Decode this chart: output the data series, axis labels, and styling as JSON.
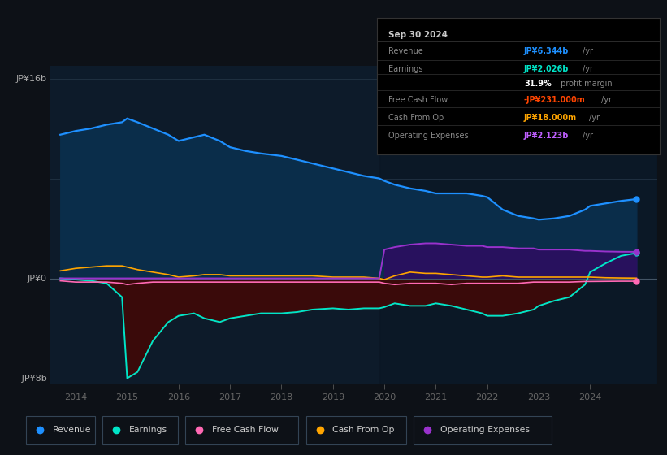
{
  "bg_color": "#0d1117",
  "plot_bg_color": "#0d1b2a",
  "ylabel_top": "JP¥16b",
  "ylabel_zero": "JP¥0",
  "ylabel_bottom": "-JP¥8b",
  "x_labels": [
    "2014",
    "2015",
    "2016",
    "2017",
    "2018",
    "2019",
    "2020",
    "2021",
    "2022",
    "2023",
    "2024"
  ],
  "x_ticks": [
    2014,
    2015,
    2016,
    2017,
    2018,
    2019,
    2020,
    2021,
    2022,
    2023,
    2024
  ],
  "info_box": {
    "date": "Sep 30 2024",
    "rows": [
      {
        "label": "Revenue",
        "value": "JP¥6.344b",
        "value_color": "#1e90ff"
      },
      {
        "label": "Earnings",
        "value": "JP¥2.026b",
        "value_color": "#00e5c8"
      },
      {
        "label": "",
        "value": "31.9%",
        "value_color": "#ffffff",
        "suffix": " profit margin"
      },
      {
        "label": "Free Cash Flow",
        "value": "-JP¥231.000m",
        "value_color": "#ff4500"
      },
      {
        "label": "Cash From Op",
        "value": "JP¥18.000m",
        "value_color": "#ffa500"
      },
      {
        "label": "Operating Expenses",
        "value": "JP¥2.123b",
        "value_color": "#bf5fff"
      }
    ]
  },
  "colors": {
    "revenue": "#1e90ff",
    "earnings": "#00e5c8",
    "free_cash_flow": "#ff69b4",
    "cash_from_op": "#ffa500",
    "operating_expenses": "#9932cc"
  },
  "revenue_fill": "#0a2d4a",
  "earnings_neg_fill": "#3a0a0a",
  "op_exp_fill": "#2a1060",
  "x": [
    2013.7,
    2014.0,
    2014.3,
    2014.6,
    2014.9,
    2015.0,
    2015.2,
    2015.5,
    2015.8,
    2016.0,
    2016.3,
    2016.5,
    2016.8,
    2017.0,
    2017.3,
    2017.6,
    2018.0,
    2018.3,
    2018.6,
    2019.0,
    2019.3,
    2019.6,
    2019.9,
    2020.0,
    2020.2,
    2020.5,
    2020.8,
    2021.0,
    2021.3,
    2021.6,
    2021.9,
    2022.0,
    2022.3,
    2022.6,
    2022.9,
    2023.0,
    2023.3,
    2023.6,
    2023.9,
    2024.0,
    2024.3,
    2024.6,
    2024.9
  ],
  "revenue": [
    11.5,
    11.8,
    12.0,
    12.3,
    12.5,
    12.8,
    12.5,
    12.0,
    11.5,
    11.0,
    11.3,
    11.5,
    11.0,
    10.5,
    10.2,
    10.0,
    9.8,
    9.5,
    9.2,
    8.8,
    8.5,
    8.2,
    8.0,
    7.8,
    7.5,
    7.2,
    7.0,
    6.8,
    6.8,
    6.8,
    6.6,
    6.5,
    5.5,
    5.0,
    4.8,
    4.7,
    4.8,
    5.0,
    5.5,
    5.8,
    6.0,
    6.2,
    6.344
  ],
  "earnings": [
    0.0,
    -0.1,
    -0.2,
    -0.4,
    -1.5,
    -8.0,
    -7.5,
    -5.0,
    -3.5,
    -3.0,
    -2.8,
    -3.2,
    -3.5,
    -3.2,
    -3.0,
    -2.8,
    -2.8,
    -2.7,
    -2.5,
    -2.4,
    -2.5,
    -2.4,
    -2.4,
    -2.3,
    -2.0,
    -2.2,
    -2.2,
    -2.0,
    -2.2,
    -2.5,
    -2.8,
    -3.0,
    -3.0,
    -2.8,
    -2.5,
    -2.2,
    -1.8,
    -1.5,
    -0.5,
    0.5,
    1.2,
    1.8,
    2.026
  ],
  "free_cash_flow": [
    -0.2,
    -0.3,
    -0.3,
    -0.3,
    -0.4,
    -0.5,
    -0.4,
    -0.3,
    -0.3,
    -0.3,
    -0.3,
    -0.3,
    -0.3,
    -0.3,
    -0.3,
    -0.3,
    -0.3,
    -0.3,
    -0.3,
    -0.3,
    -0.3,
    -0.3,
    -0.3,
    -0.4,
    -0.5,
    -0.4,
    -0.4,
    -0.4,
    -0.5,
    -0.4,
    -0.4,
    -0.4,
    -0.4,
    -0.4,
    -0.3,
    -0.3,
    -0.3,
    -0.3,
    -0.25,
    -0.25,
    -0.24,
    -0.23,
    -0.231
  ],
  "cash_from_op": [
    0.6,
    0.8,
    0.9,
    1.0,
    1.0,
    0.9,
    0.7,
    0.5,
    0.3,
    0.1,
    0.2,
    0.3,
    0.3,
    0.2,
    0.2,
    0.2,
    0.2,
    0.2,
    0.2,
    0.1,
    0.1,
    0.1,
    0.0,
    -0.1,
    0.2,
    0.5,
    0.4,
    0.4,
    0.3,
    0.2,
    0.1,
    0.1,
    0.2,
    0.1,
    0.1,
    0.1,
    0.1,
    0.1,
    0.1,
    0.1,
    0.05,
    0.03,
    0.018
  ],
  "operating_expenses": [
    0.0,
    0.0,
    0.0,
    0.0,
    0.0,
    0.0,
    0.0,
    0.0,
    0.0,
    0.0,
    0.0,
    0.0,
    0.0,
    0.0,
    0.0,
    0.0,
    0.0,
    0.0,
    0.0,
    0.0,
    0.0,
    0.0,
    0.0,
    2.3,
    2.5,
    2.7,
    2.8,
    2.8,
    2.7,
    2.6,
    2.6,
    2.5,
    2.5,
    2.4,
    2.4,
    2.3,
    2.3,
    2.3,
    2.2,
    2.2,
    2.15,
    2.13,
    2.123
  ],
  "ylim": [
    -8.5,
    17
  ],
  "xlim": [
    2013.5,
    2025.3
  ],
  "legend": [
    {
      "label": "Revenue",
      "color": "#1e90ff"
    },
    {
      "label": "Earnings",
      "color": "#00e5c8"
    },
    {
      "label": "Free Cash Flow",
      "color": "#ff69b4"
    },
    {
      "label": "Cash From Op",
      "color": "#ffa500"
    },
    {
      "label": "Operating Expenses",
      "color": "#9932cc"
    }
  ]
}
